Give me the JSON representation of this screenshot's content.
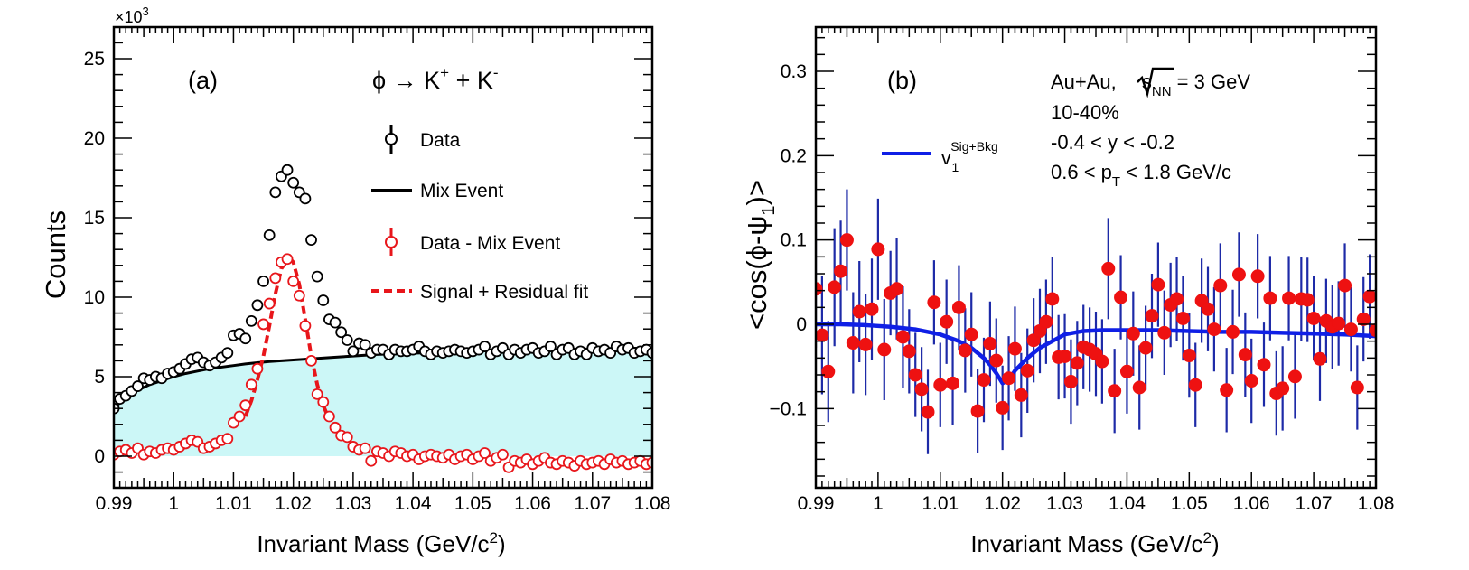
{
  "chart_data": [
    {
      "type": "scatter",
      "panel_label": "(a)",
      "reaction": {
        "base": "ϕ → K",
        "sup1": "+",
        "mid": " + K",
        "sup2": "-"
      },
      "xlabel": {
        "base": "Invariant Mass (GeV/c",
        "sup": "2",
        "end": ")"
      },
      "ylabel": "Counts",
      "y_multiplier": {
        "base": "×10",
        "sup": "3"
      },
      "xlim": [
        0.99,
        1.08
      ],
      "ylim": [
        -2,
        27
      ],
      "x_ticks": [
        0.99,
        1,
        1.01,
        1.02,
        1.03,
        1.04,
        1.05,
        1.06,
        1.07,
        1.08
      ],
      "x_tick_labels": [
        "0.99",
        "1",
        "1.01",
        "1.02",
        "1.03",
        "1.04",
        "1.05",
        "1.06",
        "1.07",
        "1.08"
      ],
      "y_ticks": [
        0,
        5,
        10,
        15,
        20,
        25
      ],
      "y_tick_labels": [
        "0",
        "5",
        "10",
        "15",
        "20",
        "25"
      ],
      "legend": {
        "placement": "top-right",
        "entries": [
          "Data",
          "Mix Event",
          "Data - Mix Event",
          "Signal + Residual fit"
        ]
      },
      "colors": {
        "data": "#000000",
        "mix_line": "#000000",
        "mix_fill": "#ccf7f7",
        "sub": "#e8161b",
        "fit": "#e8161b"
      },
      "series": [
        {
          "name": "Data",
          "x": [
            0.99,
            0.991,
            0.992,
            0.993,
            0.994,
            0.995,
            0.996,
            0.997,
            0.998,
            0.999,
            1.0,
            1.001,
            1.002,
            1.003,
            1.004,
            1.005,
            1.006,
            1.007,
            1.008,
            1.009,
            1.01,
            1.011,
            1.012,
            1.013,
            1.014,
            1.015,
            1.016,
            1.017,
            1.018,
            1.019,
            1.02,
            1.021,
            1.022,
            1.023,
            1.024,
            1.025,
            1.026,
            1.027,
            1.028,
            1.029,
            1.03,
            1.031,
            1.032,
            1.033,
            1.034,
            1.035,
            1.036,
            1.037,
            1.038,
            1.039,
            1.04,
            1.041,
            1.042,
            1.043,
            1.044,
            1.045,
            1.046,
            1.047,
            1.048,
            1.049,
            1.05,
            1.051,
            1.052,
            1.053,
            1.054,
            1.055,
            1.056,
            1.057,
            1.058,
            1.059,
            1.06,
            1.061,
            1.062,
            1.063,
            1.064,
            1.065,
            1.066,
            1.067,
            1.068,
            1.069,
            1.07,
            1.071,
            1.072,
            1.073,
            1.074,
            1.075,
            1.076,
            1.077,
            1.078,
            1.079,
            1.08
          ],
          "y": [
            3.0,
            3.6,
            3.8,
            4.1,
            4.4,
            4.9,
            4.8,
            5.0,
            4.9,
            5.2,
            5.3,
            5.5,
            5.8,
            6.1,
            6.2,
            5.9,
            5.7,
            5.9,
            6.2,
            6.5,
            7.6,
            7.7,
            7.4,
            8.5,
            9.5,
            11.0,
            13.9,
            16.6,
            17.6,
            18.0,
            17.2,
            16.6,
            16.2,
            13.6,
            11.3,
            9.8,
            8.6,
            8.4,
            7.8,
            7.3,
            6.6,
            7.1,
            7.0,
            6.5,
            6.7,
            6.7,
            6.4,
            6.7,
            6.6,
            6.6,
            6.7,
            6.9,
            6.6,
            6.4,
            6.6,
            6.5,
            6.6,
            6.7,
            6.6,
            6.5,
            6.6,
            6.7,
            6.9,
            6.4,
            6.6,
            6.8,
            6.4,
            6.7,
            6.5,
            6.7,
            6.8,
            6.5,
            6.6,
            6.9,
            6.4,
            6.7,
            6.8,
            6.4,
            6.6,
            6.4,
            6.8,
            6.6,
            6.7,
            6.5,
            6.9,
            6.7,
            6.8,
            6.5,
            6.6,
            6.7,
            6.5
          ]
        },
        {
          "name": "Mix Event",
          "x": [
            0.99,
            0.992,
            0.994,
            0.996,
            0.998,
            1.0,
            1.002,
            1.004,
            1.006,
            1.008,
            1.01,
            1.012,
            1.014,
            1.016,
            1.018,
            1.02,
            1.022,
            1.024,
            1.026,
            1.028,
            1.03,
            1.034,
            1.038,
            1.042,
            1.046,
            1.05,
            1.055,
            1.06,
            1.065,
            1.07,
            1.075,
            1.08
          ],
          "y": [
            3.0,
            3.7,
            4.15,
            4.5,
            4.75,
            5.0,
            5.2,
            5.35,
            5.5,
            5.6,
            5.7,
            5.8,
            5.88,
            5.95,
            6.0,
            6.05,
            6.1,
            6.15,
            6.2,
            6.25,
            6.3,
            6.4,
            6.45,
            6.5,
            6.55,
            6.6,
            6.65,
            6.7,
            6.72,
            6.75,
            6.78,
            6.8
          ]
        },
        {
          "name": "Data - Mix Event",
          "x": [
            0.99,
            0.991,
            0.992,
            0.993,
            0.994,
            0.995,
            0.996,
            0.997,
            0.998,
            0.999,
            1.0,
            1.001,
            1.002,
            1.003,
            1.004,
            1.005,
            1.006,
            1.007,
            1.008,
            1.009,
            1.01,
            1.011,
            1.012,
            1.013,
            1.014,
            1.015,
            1.016,
            1.017,
            1.018,
            1.019,
            1.02,
            1.021,
            1.022,
            1.023,
            1.024,
            1.025,
            1.026,
            1.027,
            1.028,
            1.029,
            1.03,
            1.031,
            1.032,
            1.033,
            1.034,
            1.035,
            1.036,
            1.037,
            1.038,
            1.039,
            1.04,
            1.041,
            1.042,
            1.043,
            1.044,
            1.045,
            1.046,
            1.047,
            1.048,
            1.049,
            1.05,
            1.051,
            1.052,
            1.053,
            1.054,
            1.055,
            1.056,
            1.057,
            1.058,
            1.059,
            1.06,
            1.061,
            1.062,
            1.063,
            1.064,
            1.065,
            1.066,
            1.067,
            1.068,
            1.069,
            1.07,
            1.071,
            1.072,
            1.073,
            1.074,
            1.075,
            1.076,
            1.077,
            1.078,
            1.079,
            1.08
          ],
          "y": [
            0.1,
            0.3,
            0.4,
            0.2,
            0.5,
            0.1,
            0.3,
            0.2,
            0.4,
            0.5,
            0.4,
            0.6,
            0.8,
            1.0,
            0.9,
            0.5,
            0.6,
            0.8,
            1.0,
            1.1,
            2.1,
            2.5,
            3.2,
            4.5,
            5.5,
            8.3,
            9.6,
            11.2,
            12.2,
            12.4,
            11.0,
            10.1,
            8.2,
            6.0,
            3.9,
            3.4,
            2.5,
            1.8,
            1.3,
            1.2,
            0.6,
            0.4,
            0.5,
            -0.3,
            0.3,
            0.2,
            0.0,
            0.3,
            0.2,
            0.0,
            0.1,
            -0.2,
            0.0,
            0.1,
            0.0,
            -0.1,
            0.1,
            -0.2,
            0.0,
            0.1,
            -0.2,
            0.0,
            0.2,
            -0.3,
            -0.1,
            0.1,
            -0.7,
            -0.3,
            -0.4,
            -0.2,
            -0.5,
            -0.3,
            -0.1,
            -0.4,
            -0.5,
            -0.3,
            -0.4,
            -0.6,
            -0.3,
            -0.5,
            -0.4,
            -0.3,
            -0.5,
            -0.2,
            -0.4,
            -0.3,
            -0.5,
            -0.4,
            -0.3,
            -0.5,
            -0.4
          ]
        },
        {
          "name": "Signal + Residual fit",
          "x": [
            1.012,
            1.013,
            1.014,
            1.015,
            1.016,
            1.017,
            1.018,
            1.019,
            1.0195,
            1.02,
            1.021,
            1.022,
            1.023,
            1.024,
            1.025,
            1.026
          ],
          "y": [
            2.5,
            3.5,
            4.8,
            6.3,
            8.2,
            10.2,
            11.8,
            12.3,
            12.4,
            12.2,
            10.8,
            8.6,
            6.3,
            4.5,
            3.2,
            2.3
          ]
        }
      ]
    },
    {
      "type": "scatter",
      "panel_label": "(b)",
      "xlabel": {
        "base": "Invariant Mass (GeV/c",
        "sup": "2",
        "end": ")"
      },
      "ylabel": {
        "base": "<cos(ϕ-ψ",
        "sub": "1",
        "end": ")>"
      },
      "xlim": [
        0.99,
        1.08
      ],
      "ylim": [
        -0.19,
        0.35
      ],
      "x_ticks": [
        0.99,
        1,
        1.01,
        1.02,
        1.03,
        1.04,
        1.05,
        1.06,
        1.07,
        1.08
      ],
      "x_tick_labels": [
        "0.99",
        "1",
        "1.01",
        "1.02",
        "1.03",
        "1.04",
        "1.05",
        "1.06",
        "1.07",
        "1.08"
      ],
      "y_ticks": [
        -0.1,
        0,
        0.1,
        0.2,
        0.3
      ],
      "y_tick_labels": [
        "−0.1",
        "0",
        "0.1",
        "0.2",
        "0.3"
      ],
      "legend": {
        "placement": "upper-left",
        "entry": {
          "base": "v",
          "sub": "1",
          "sup": "Sig+Bkg"
        }
      },
      "info": {
        "line1_pre": "Au+Au, ",
        "line1_sqrt": "s",
        "line1_sub": "NN",
        "line1_post": " = 3 GeV",
        "line2": "10-40%",
        "line3": "-0.4 < y < -0.2",
        "line4_pre": "0.6 < p",
        "line4_sub": "T",
        "line4_post": " < 1.8 GeV/c"
      },
      "colors": {
        "points": "#ee1111",
        "errors": "#1d2aa7",
        "curve": "#0f1fe6"
      },
      "series": [
        {
          "name": "Data",
          "x": [
            0.99,
            0.991,
            0.992,
            0.993,
            0.994,
            0.995,
            0.996,
            0.997,
            0.998,
            0.999,
            1.0,
            1.001,
            1.002,
            1.003,
            1.004,
            1.005,
            1.006,
            1.007,
            1.008,
            1.009,
            1.01,
            1.011,
            1.012,
            1.013,
            1.014,
            1.015,
            1.016,
            1.017,
            1.018,
            1.019,
            1.02,
            1.021,
            1.022,
            1.023,
            1.024,
            1.025,
            1.026,
            1.027,
            1.028,
            1.029,
            1.03,
            1.031,
            1.032,
            1.033,
            1.034,
            1.035,
            1.036,
            1.037,
            1.038,
            1.039,
            1.04,
            1.041,
            1.042,
            1.043,
            1.044,
            1.045,
            1.046,
            1.047,
            1.048,
            1.049,
            1.05,
            1.051,
            1.052,
            1.053,
            1.054,
            1.055,
            1.056,
            1.057,
            1.058,
            1.059,
            1.06,
            1.061,
            1.062,
            1.063,
            1.064,
            1.065,
            1.066,
            1.067,
            1.068,
            1.069,
            1.07,
            1.071,
            1.072,
            1.073,
            1.074,
            1.075,
            1.076,
            1.077,
            1.078,
            1.079,
            1.08
          ],
          "y": [
            0.042,
            -0.013,
            -0.056,
            0.044,
            0.063,
            0.1,
            -0.022,
            0.015,
            -0.024,
            0.018,
            0.089,
            -0.03,
            0.037,
            0.042,
            -0.015,
            -0.032,
            -0.06,
            -0.077,
            -0.104,
            0.026,
            -0.072,
            0.003,
            -0.07,
            0.02,
            -0.031,
            -0.012,
            -0.103,
            -0.066,
            -0.023,
            -0.043,
            -0.099,
            -0.064,
            -0.029,
            -0.084,
            -0.055,
            -0.019,
            -0.008,
            0.003,
            0.03,
            -0.039,
            -0.038,
            -0.068,
            -0.046,
            -0.027,
            -0.03,
            -0.035,
            -0.044,
            0.066,
            -0.079,
            0.032,
            -0.056,
            -0.011,
            -0.075,
            -0.028,
            0.01,
            0.047,
            -0.01,
            0.023,
            0.03,
            0.007,
            -0.037,
            -0.072,
            0.028,
            0.018,
            -0.006,
            0.046,
            -0.078,
            -0.009,
            0.059,
            -0.036,
            -0.067,
            0.057,
            -0.048,
            0.031,
            -0.082,
            -0.076,
            0.031,
            -0.062,
            0.03,
            0.029,
            0.007,
            -0.041,
            0.004,
            -0.003,
            0.001,
            0.046,
            -0.006,
            -0.075,
            0.006,
            0.033,
            -0.007
          ],
          "err": [
            0.07,
            0.07,
            0.06,
            0.07,
            0.06,
            0.06,
            0.06,
            0.06,
            0.06,
            0.06,
            0.06,
            0.06,
            0.05,
            0.06,
            0.06,
            0.05,
            0.05,
            0.05,
            0.05,
            0.05,
            0.05,
            0.05,
            0.05,
            0.05,
            0.05,
            0.05,
            0.05,
            0.05,
            0.05,
            0.05,
            0.05,
            0.05,
            0.05,
            0.05,
            0.05,
            0.05,
            0.05,
            0.05,
            0.05,
            0.05,
            0.05,
            0.05,
            0.05,
            0.05,
            0.05,
            0.05,
            0.05,
            0.06,
            0.05,
            0.05,
            0.05,
            0.05,
            0.05,
            0.05,
            0.05,
            0.05,
            0.05,
            0.05,
            0.05,
            0.05,
            0.05,
            0.05,
            0.05,
            0.05,
            0.05,
            0.05,
            0.05,
            0.05,
            0.05,
            0.05,
            0.05,
            0.05,
            0.05,
            0.05,
            0.05,
            0.05,
            0.05,
            0.05,
            0.05,
            0.05,
            0.05,
            0.05,
            0.05,
            0.05,
            0.05,
            0.05,
            0.05,
            0.05,
            0.05,
            0.05,
            0.05
          ]
        },
        {
          "name": "v1 Sig+Bkg",
          "x": [
            0.99,
            0.994,
            0.998,
            1.002,
            1.006,
            1.01,
            1.013,
            1.015,
            1.017,
            1.018,
            1.019,
            1.02,
            1.021,
            1.022,
            1.024,
            1.026,
            1.028,
            1.03,
            1.033,
            1.036,
            1.04,
            1.045,
            1.05,
            1.055,
            1.06,
            1.065,
            1.07,
            1.075,
            1.08
          ],
          "y": [
            0.0,
            0.0,
            -0.001,
            -0.003,
            -0.006,
            -0.012,
            -0.02,
            -0.028,
            -0.04,
            -0.048,
            -0.058,
            -0.07,
            -0.066,
            -0.055,
            -0.04,
            -0.028,
            -0.02,
            -0.012,
            -0.008,
            -0.007,
            -0.007,
            -0.007,
            -0.008,
            -0.009,
            -0.009,
            -0.01,
            -0.011,
            -0.012,
            -0.014
          ]
        }
      ]
    }
  ]
}
